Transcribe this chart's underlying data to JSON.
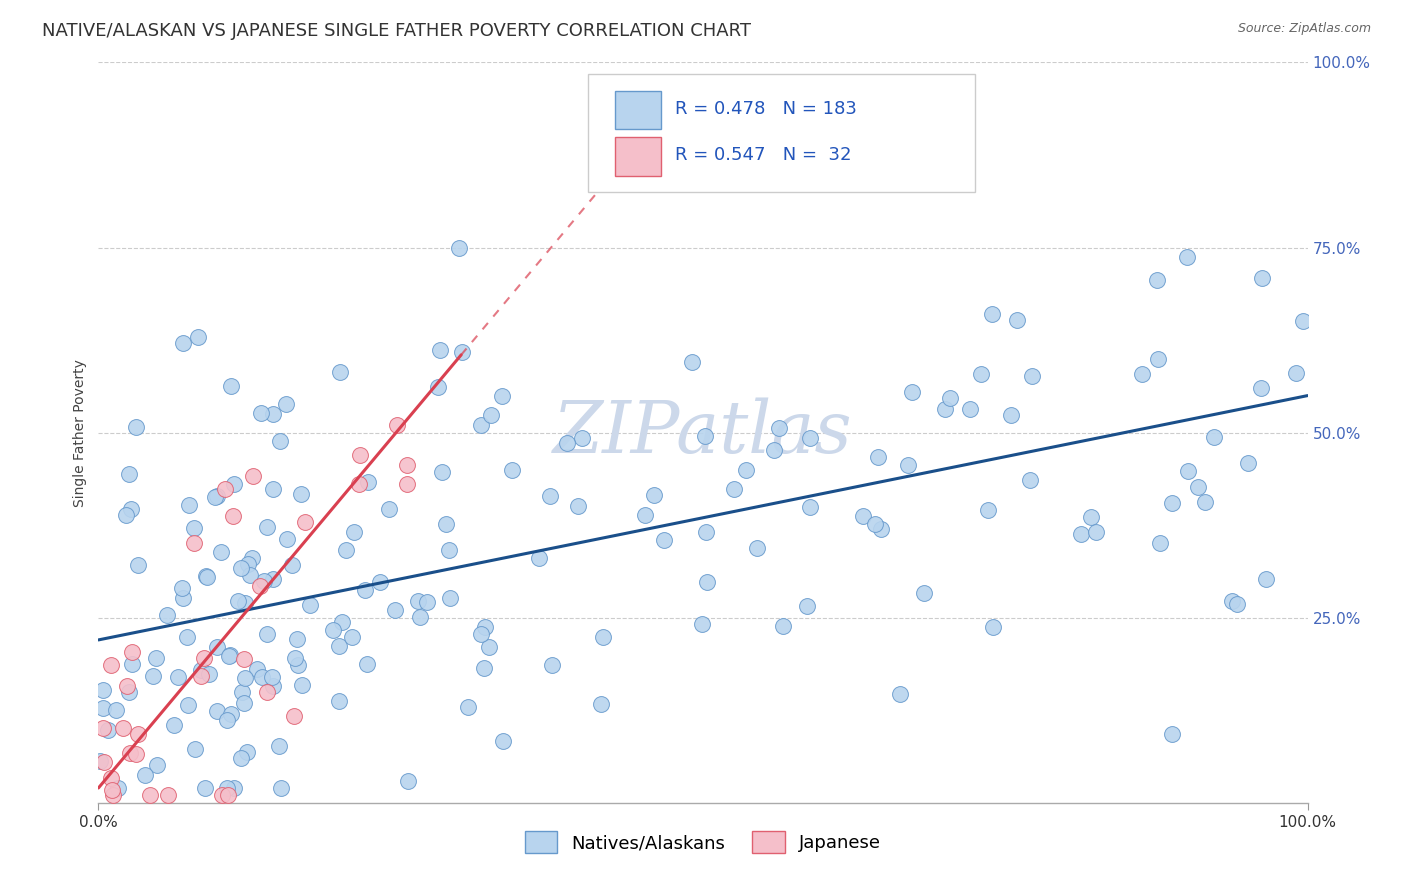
{
  "title": "NATIVE/ALASKAN VS JAPANESE SINGLE FATHER POVERTY CORRELATION CHART",
  "source": "Source: ZipAtlas.com",
  "ylabel": "Single Father Poverty",
  "ylabel_right_ticks": [
    "25.0%",
    "50.0%",
    "75.0%",
    "100.0%"
  ],
  "ylabel_right_values": [
    0.25,
    0.5,
    0.75,
    1.0
  ],
  "legend_blue_label": "Natives/Alaskans",
  "legend_pink_label": "Japanese",
  "R_blue": 0.478,
  "N_blue": 183,
  "R_pink": 0.547,
  "N_pink": 32,
  "blue_color": "#b8d4ee",
  "pink_color": "#f5bfca",
  "blue_edge_color": "#6699cc",
  "pink_edge_color": "#e06070",
  "blue_line_color": "#1a4f8a",
  "pink_line_color": "#d94050",
  "watermark_color": "#ccd8ea",
  "title_fontsize": 13,
  "axis_label_fontsize": 10,
  "tick_fontsize": 11,
  "legend_fontsize": 13,
  "corr_fontsize": 13,
  "watermark_fontsize": 52,
  "grid_color": "#cccccc",
  "blue_intercept": 0.22,
  "blue_slope": 0.33,
  "pink_intercept": 0.02,
  "pink_slope": 1.95
}
